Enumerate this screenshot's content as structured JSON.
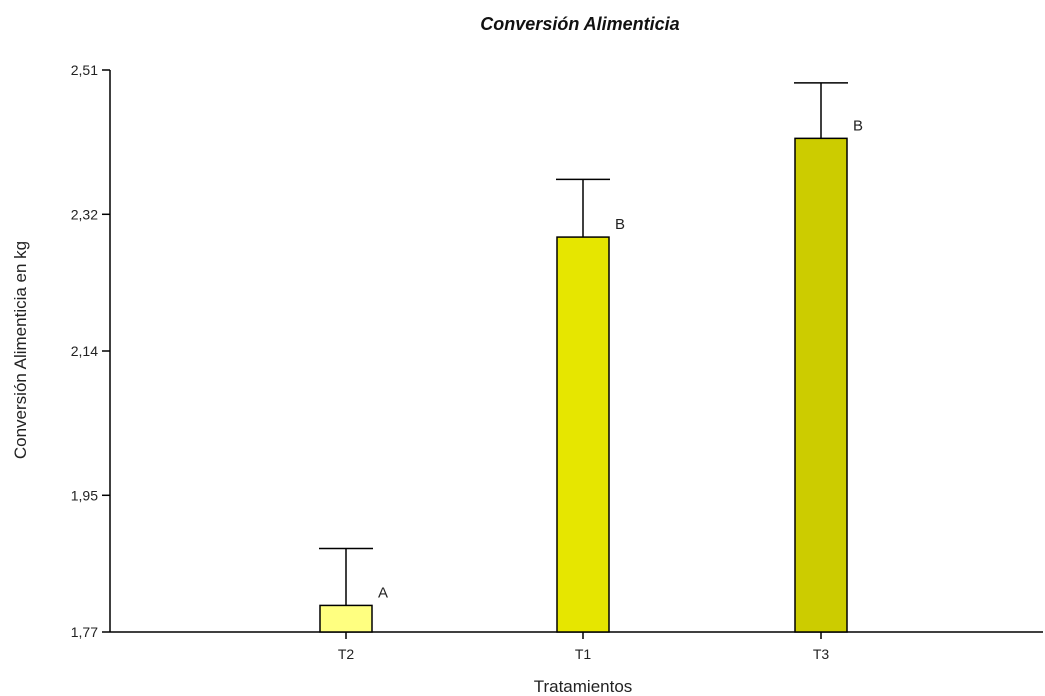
{
  "chart_data": {
    "type": "bar",
    "title": "Conversión Alimenticia",
    "xlabel": "Tratamientos",
    "ylabel": "Conversión Alimenticia en kg",
    "categories": [
      "T2",
      "T1",
      "T3"
    ],
    "values": [
      1.805,
      2.29,
      2.42
    ],
    "error_upper": [
      1.88,
      2.366,
      2.493
    ],
    "significance_labels": [
      "A",
      "B",
      "B"
    ],
    "colors": [
      "#ffff80",
      "#e6e600",
      "#cccc00"
    ],
    "ylim": [
      1.77,
      2.51
    ],
    "yticks": [
      1.77,
      1.95,
      2.14,
      2.32,
      2.51
    ],
    "ytick_labels": [
      "1,77",
      "1,95",
      "2,14",
      "2,32",
      "2,51"
    ],
    "grid": false,
    "legend": "none"
  }
}
